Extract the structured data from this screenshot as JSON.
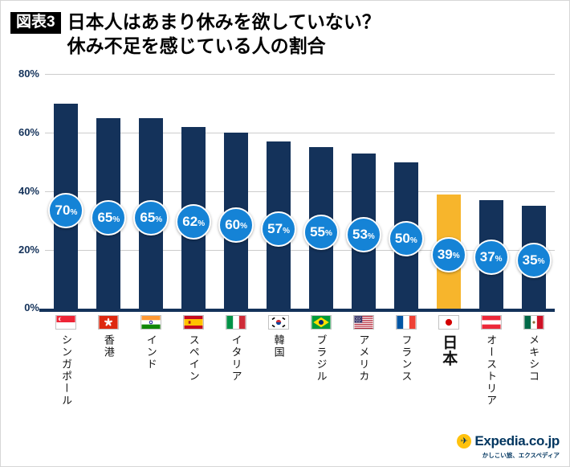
{
  "header": {
    "badge": "図表3",
    "title_line1": "日本人はあまり休みを欲していない？",
    "title_line2": "休み不足を感じている人の割合"
  },
  "chart_data": {
    "type": "bar",
    "title": "休み不足を感じている人の割合",
    "categories": [
      "シンガポール",
      "香港",
      "インド",
      "スペイン",
      "イタリア",
      "韓国",
      "ブラジル",
      "アメリカ",
      "フランス",
      "日本",
      "オーストリア",
      "メキシコ"
    ],
    "values": [
      70,
      65,
      65,
      62,
      60,
      57,
      55,
      53,
      50,
      39,
      37,
      35
    ],
    "ylim": [
      0,
      80
    ],
    "yticks": [
      "80%",
      "60%",
      "40%",
      "20%",
      "0%"
    ],
    "grid": true,
    "legend": "none",
    "bar_color": "#14325a",
    "highlight_category": "日本",
    "highlight_color": "#f7b52c",
    "badge_color": "#1583d6",
    "axis_color": "#14325a"
  },
  "bars": [
    {
      "country": "シンガポール",
      "value": 70,
      "label": "70",
      "flag": "singapore",
      "highlight": false
    },
    {
      "country": "香港",
      "value": 65,
      "label": "65",
      "flag": "hongkong",
      "highlight": false
    },
    {
      "country": "インド",
      "value": 65,
      "label": "65",
      "flag": "india",
      "highlight": false
    },
    {
      "country": "スペイン",
      "value": 62,
      "label": "62",
      "flag": "spain",
      "highlight": false
    },
    {
      "country": "イタリア",
      "value": 60,
      "label": "60",
      "flag": "italy",
      "highlight": false
    },
    {
      "country": "韓国",
      "value": 57,
      "label": "57",
      "flag": "korea",
      "highlight": false
    },
    {
      "country": "ブラジル",
      "value": 55,
      "label": "55",
      "flag": "brazil",
      "highlight": false
    },
    {
      "country": "アメリカ",
      "value": 53,
      "label": "53",
      "flag": "usa",
      "highlight": false
    },
    {
      "country": "フランス",
      "value": 50,
      "label": "50",
      "flag": "france",
      "highlight": false
    },
    {
      "country": "日本",
      "value": 39,
      "label": "39",
      "flag": "japan",
      "highlight": true
    },
    {
      "country": "オーストリア",
      "value": 37,
      "label": "37",
      "flag": "austria",
      "highlight": false
    },
    {
      "country": "メキシコ",
      "value": 35,
      "label": "35",
      "flag": "mexico",
      "highlight": false
    }
  ],
  "footer": {
    "logo_text": "Expedia.co.jp",
    "tagline": "かしこい旅、エクスペディア"
  }
}
